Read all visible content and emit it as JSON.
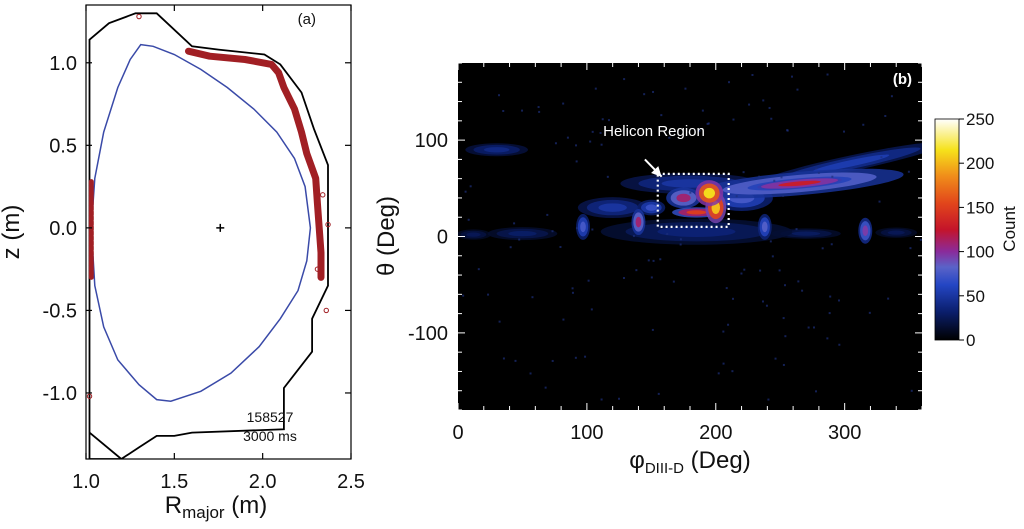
{
  "chart_data": [
    {
      "panel": "(a)",
      "type": "line",
      "xlabel_main": "R",
      "xlabel_sub": "major",
      "xlabel_unit": " (m)",
      "ylabel": "z (m)",
      "xlim": [
        1.0,
        2.5
      ],
      "ylim": [
        -1.4,
        1.35
      ],
      "x_ticks": [
        1.0,
        1.5,
        2.0,
        2.5
      ],
      "x_tick_labels": [
        "1.0",
        "1.5",
        "2.0",
        "2.5"
      ],
      "y_ticks": [
        1.0,
        0.5,
        0.0,
        -0.5,
        -1.0
      ],
      "y_tick_labels": [
        "1.0",
        "0.5",
        "0.0",
        "-0.5",
        "-1.0"
      ],
      "annotation_shot": "158527",
      "annotation_time": "3000 ms",
      "colors": {
        "plasma": "#3a4aa8",
        "vessel": "#000000",
        "strikes": "#a11f24"
      },
      "magnetic_axis": [
        1.76,
        0.0
      ],
      "plasma_boundary": [
        [
          1.31,
          1.11
        ],
        [
          1.38,
          1.1
        ],
        [
          1.5,
          1.05
        ],
        [
          1.65,
          0.96
        ],
        [
          1.8,
          0.85
        ],
        [
          1.95,
          0.72
        ],
        [
          2.08,
          0.58
        ],
        [
          2.18,
          0.42
        ],
        [
          2.24,
          0.25
        ],
        [
          2.27,
          0.0
        ],
        [
          2.25,
          -0.2
        ],
        [
          2.2,
          -0.38
        ],
        [
          2.1,
          -0.55
        ],
        [
          1.98,
          -0.72
        ],
        [
          1.82,
          -0.88
        ],
        [
          1.65,
          -0.99
        ],
        [
          1.48,
          -1.05
        ],
        [
          1.4,
          -1.04
        ],
        [
          1.3,
          -0.95
        ],
        [
          1.18,
          -0.8
        ],
        [
          1.1,
          -0.6
        ],
        [
          1.05,
          -0.35
        ],
        [
          1.03,
          0.0
        ],
        [
          1.05,
          0.3
        ],
        [
          1.1,
          0.58
        ],
        [
          1.18,
          0.85
        ],
        [
          1.25,
          1.02
        ],
        [
          1.31,
          1.11
        ]
      ],
      "vessel_wall": [
        [
          1.02,
          1.05
        ],
        [
          1.02,
          1.14
        ],
        [
          1.13,
          1.24
        ],
        [
          1.28,
          1.3
        ],
        [
          1.4,
          1.3
        ],
        [
          1.6,
          1.1
        ],
        [
          1.75,
          1.08
        ],
        [
          2.01,
          1.05
        ],
        [
          2.1,
          0.99
        ],
        [
          2.22,
          0.82
        ],
        [
          2.29,
          0.6
        ],
        [
          2.37,
          0.38
        ],
        [
          2.37,
          -0.35
        ],
        [
          2.28,
          -0.55
        ],
        [
          2.28,
          -0.75
        ],
        [
          2.12,
          -0.97
        ],
        [
          2.12,
          -1.22
        ],
        [
          1.6,
          -1.24
        ],
        [
          1.5,
          -1.26
        ],
        [
          1.4,
          -1.26
        ],
        [
          1.3,
          -1.33
        ],
        [
          1.2,
          -1.4
        ],
        [
          1.02,
          -1.4
        ],
        [
          1.02,
          0.0
        ],
        [
          1.02,
          1.05
        ]
      ],
      "vessel_corner": [
        [
          1.02,
          -1.24
        ],
        [
          1.2,
          -1.4
        ]
      ],
      "strike_bands": [
        [
          [
            1.58,
            1.07
          ],
          [
            1.7,
            1.04
          ],
          [
            1.9,
            1.02
          ],
          [
            2.05,
            0.99
          ],
          [
            2.09,
            0.94
          ],
          [
            2.12,
            0.85
          ],
          [
            2.18,
            0.72
          ],
          [
            2.22,
            0.58
          ],
          [
            2.25,
            0.45
          ],
          [
            2.3,
            0.3
          ],
          [
            2.31,
            0.15
          ],
          [
            2.32,
            0.0
          ],
          [
            2.33,
            -0.15
          ],
          [
            2.33,
            -0.3
          ]
        ],
        [
          [
            1.03,
            0.28
          ],
          [
            1.03,
            0.0
          ],
          [
            1.03,
            -0.3
          ]
        ]
      ],
      "strike_dots": [
        [
          1.3,
          1.28
        ],
        [
          2.36,
          -0.5
        ],
        [
          1.02,
          -1.02
        ],
        [
          2.37,
          0.02
        ],
        [
          2.34,
          0.2
        ],
        [
          2.31,
          -0.25
        ]
      ]
    },
    {
      "panel": "(b)",
      "type": "heatmap",
      "xlabel_main": "φ",
      "xlabel_sub": "DIII-D",
      "xlabel_unit": " (Deg)",
      "ylabel": "θ (Deg)",
      "xlim": [
        0,
        360
      ],
      "ylim": [
        -180,
        180
      ],
      "x_ticks": [
        0,
        100,
        200,
        300
      ],
      "x_tick_labels": [
        "0",
        "100",
        "200",
        "300"
      ],
      "y_ticks": [
        100,
        0,
        -100
      ],
      "y_tick_labels": [
        "100",
        "0",
        "-100"
      ],
      "colorbar_label": "Count",
      "colorbar_range": [
        0,
        250
      ],
      "colorbar_ticks": [
        250,
        200,
        150,
        100,
        50,
        0
      ],
      "colorbar_tick_labels": [
        "250",
        "200",
        "150",
        "100",
        "50",
        "0"
      ],
      "annotation": "Helicon Region",
      "helicon_box": {
        "phi": [
          155,
          210
        ],
        "theta": [
          10,
          65
        ]
      },
      "arrow_tail": [
        145,
        80
      ],
      "arrow_head": [
        158,
        62
      ],
      "colors": {
        "background": "#000000",
        "box": "#ffffff"
      },
      "blobs": [
        {
          "phi": 305,
          "theta": 76,
          "sphi": 55,
          "stheta": 6,
          "value": 55,
          "angle": -12
        },
        {
          "phi": 265,
          "theta": 55,
          "sphi": 60,
          "stheta": 9,
          "value": 105,
          "angle": -5
        },
        {
          "phi": 265,
          "theta": 55,
          "sphi": 30,
          "stheta": 4,
          "value": 130,
          "angle": -5
        },
        {
          "phi": 195,
          "theta": 45,
          "sphi": 8,
          "stheta": 10,
          "value": 215
        },
        {
          "phi": 200,
          "theta": 30,
          "sphi": 6,
          "stheta": 12,
          "value": 205
        },
        {
          "phi": 185,
          "theta": 25,
          "sphi": 14,
          "stheta": 4,
          "value": 150
        },
        {
          "phi": 175,
          "theta": 40,
          "sphi": 10,
          "stheta": 8,
          "value": 110
        },
        {
          "phi": 220,
          "theta": 40,
          "sphi": 18,
          "stheta": 10,
          "value": 75
        },
        {
          "phi": 140,
          "theta": 15,
          "sphi": 4,
          "stheta": 10,
          "value": 110
        },
        {
          "phi": 97,
          "theta": 10,
          "sphi": 4,
          "stheta": 10,
          "value": 75
        },
        {
          "phi": 238,
          "theta": 10,
          "sphi": 4,
          "stheta": 10,
          "value": 80
        },
        {
          "phi": 316,
          "theta": 6,
          "sphi": 4,
          "stheta": 10,
          "value": 95
        },
        {
          "phi": 120,
          "theta": 30,
          "sphi": 20,
          "stheta": 8,
          "value": 50
        },
        {
          "phi": 180,
          "theta": 55,
          "sphi": 40,
          "stheta": 8,
          "value": 50
        },
        {
          "phi": 30,
          "theta": 90,
          "sphi": 18,
          "stheta": 5,
          "value": 40
        },
        {
          "phi": 185,
          "theta": 5,
          "sphi": 55,
          "stheta": 10,
          "value": 35
        },
        {
          "phi": 50,
          "theta": 3,
          "sphi": 20,
          "stheta": 5,
          "value": 30
        },
        {
          "phi": 12,
          "theta": 2,
          "sphi": 10,
          "stheta": 4,
          "value": 25
        },
        {
          "phi": 270,
          "theta": 3,
          "sphi": 20,
          "stheta": 4,
          "value": 28
        },
        {
          "phi": 340,
          "theta": 4,
          "sphi": 12,
          "stheta": 4,
          "value": 25
        },
        {
          "phi": 150,
          "theta": 30,
          "sphi": 8,
          "stheta": 6,
          "value": 70
        }
      ]
    }
  ]
}
